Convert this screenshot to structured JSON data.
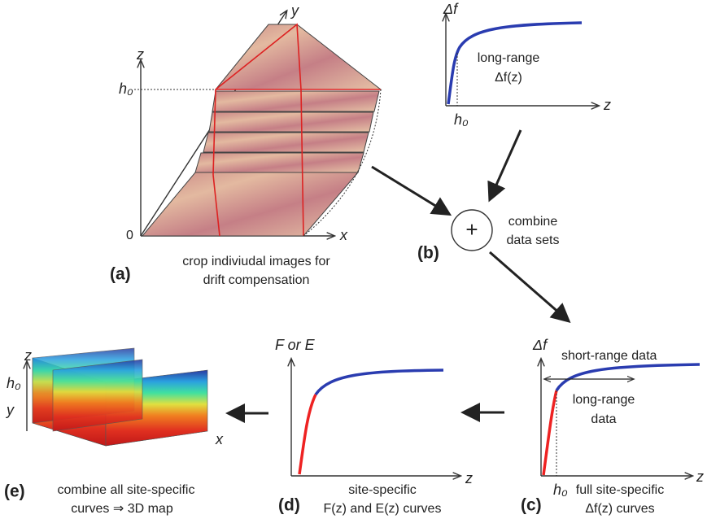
{
  "panel_a": {
    "axis_y": "y",
    "axis_z": "z",
    "h0": "h₀",
    "origin": "0",
    "axis_x": "x",
    "tag": "(a)",
    "caption": [
      "crop indiviudal images for",
      "drift compensation"
    ]
  },
  "panel_b_plot": {
    "axis_y": "Δf",
    "axis_x": "z",
    "h0": "h₀",
    "label": [
      "long-range",
      "Δf(z)"
    ]
  },
  "panel_b": {
    "symbol": "+",
    "caption": [
      "combine",
      "data sets"
    ],
    "tag": "(b)"
  },
  "panel_c": {
    "axis_y": "Δf",
    "axis_x": "z",
    "h0": "h₀",
    "short_range": "short-range data",
    "long_range": [
      "long-range",
      "data"
    ],
    "tag": "(c)",
    "caption": [
      "full site-specific",
      "Δf(z) curves"
    ]
  },
  "panel_d": {
    "axis_y": "F or E",
    "axis_x": "z",
    "tag": "(d)",
    "caption": [
      "site-specific",
      "F(z) and E(z) curves"
    ]
  },
  "panel_e": {
    "axis_z": "z",
    "h0": "h₀",
    "axis_y": "y",
    "axis_x": "x",
    "tag": "(e)",
    "caption": [
      "combine all site-specific",
      "curves ⇒ 3D map"
    ]
  }
}
